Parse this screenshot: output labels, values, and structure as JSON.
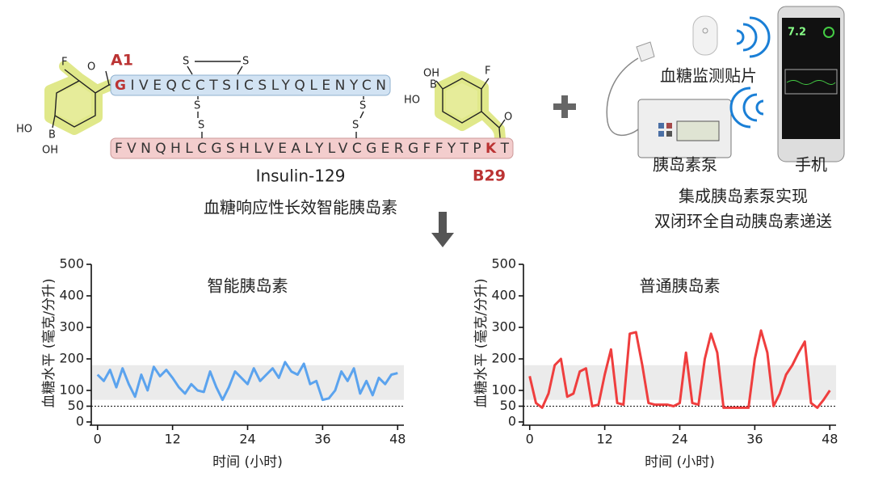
{
  "diagram": {
    "a1": "A1",
    "b29": "B29",
    "a_chain": [
      "G",
      "IVEQCCTSICSLYQLENYCN"
    ],
    "b_chain": [
      "FVNQHLCGSHLVEALYLVCGERGFFYTP",
      "K",
      "T"
    ],
    "atoms": {
      "F": "F",
      "O": "O",
      "B": "B",
      "HO": "HO",
      "OH": "OH",
      "S": "S"
    },
    "insulin_name": "Insulin-129",
    "insulin_desc": "血糖响应性长效智能胰岛素",
    "patch": "血糖监测贴片",
    "pump": "胰岛素泵",
    "phone": "手机",
    "phone_reading": "7.2",
    "system": [
      "集成胰岛素泵实现",
      "双闭环全自动胰岛素递送"
    ]
  },
  "chart_data": [
    {
      "type": "line",
      "title": "智能胰岛素",
      "xlabel": "时间 (小时)",
      "ylabel": "血糖水平 (毫克/分升)",
      "x": [
        0,
        1,
        2,
        3,
        4,
        5,
        6,
        7,
        8,
        9,
        10,
        11,
        12,
        13,
        14,
        15,
        16,
        17,
        18,
        19,
        20,
        21,
        22,
        23,
        24,
        25,
        26,
        27,
        28,
        29,
        30,
        31,
        32,
        33,
        34,
        35,
        36,
        37,
        38,
        39,
        40,
        41,
        42,
        43,
        44,
        45,
        46,
        47,
        48
      ],
      "values": [
        150,
        130,
        165,
        110,
        170,
        120,
        80,
        150,
        100,
        175,
        145,
        165,
        140,
        110,
        90,
        120,
        100,
        95,
        160,
        110,
        70,
        110,
        160,
        140,
        120,
        170,
        130,
        150,
        170,
        140,
        190,
        160,
        150,
        185,
        120,
        130,
        70,
        75,
        100,
        160,
        130,
        170,
        90,
        130,
        85,
        140,
        120,
        150,
        155
      ],
      "color": "#5ba3ee",
      "xlim": [
        -1,
        49
      ],
      "xticks": [
        0,
        12,
        24,
        36,
        48
      ],
      "ylim": [
        0,
        500
      ],
      "yticks": [
        0,
        50,
        100,
        200,
        300,
        400,
        500
      ],
      "band": [
        70,
        180
      ],
      "threshold": 50
    },
    {
      "type": "line",
      "title": "普通胰岛素",
      "xlabel": "时间 (小时)",
      "ylabel": "血糖水平 (毫克/分升)",
      "x": [
        0,
        1,
        2,
        3,
        4,
        5,
        6,
        7,
        8,
        9,
        10,
        11,
        12,
        13,
        14,
        15,
        16,
        17,
        18,
        19,
        20,
        21,
        22,
        23,
        24,
        25,
        26,
        27,
        28,
        29,
        30,
        31,
        32,
        33,
        34,
        35,
        36,
        37,
        38,
        39,
        40,
        41,
        42,
        43,
        44,
        45,
        46,
        47,
        48
      ],
      "values": [
        145,
        60,
        45,
        90,
        180,
        200,
        80,
        90,
        160,
        170,
        50,
        55,
        150,
        230,
        60,
        55,
        280,
        285,
        180,
        60,
        55,
        55,
        55,
        50,
        60,
        220,
        60,
        55,
        200,
        280,
        220,
        45,
        45,
        45,
        45,
        45,
        200,
        290,
        220,
        50,
        90,
        150,
        180,
        220,
        255,
        60,
        45,
        70,
        100
      ],
      "color": "#ef3e3e",
      "xlim": [
        -1,
        49
      ],
      "xticks": [
        0,
        12,
        24,
        36,
        48
      ],
      "ylim": [
        0,
        500
      ],
      "yticks": [
        0,
        50,
        100,
        200,
        300,
        400,
        500
      ],
      "band": [
        70,
        180
      ],
      "threshold": 50
    }
  ]
}
